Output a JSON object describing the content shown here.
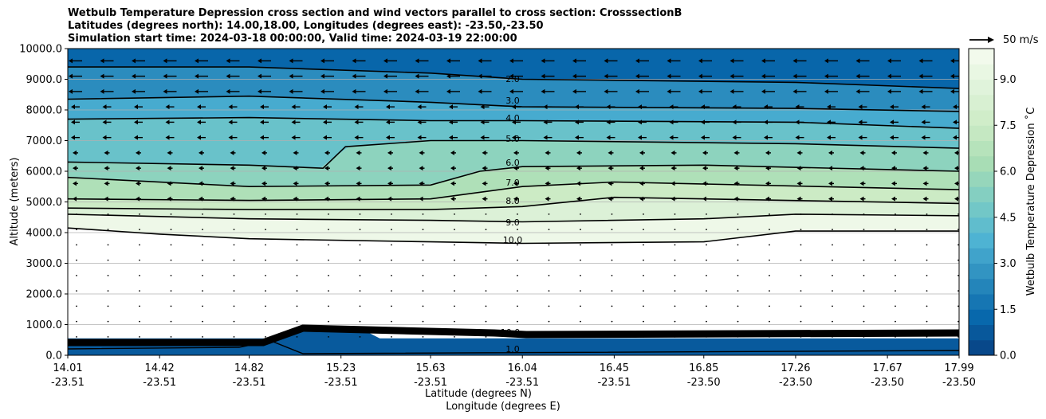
{
  "title_lines": [
    "Wetbulb Temperature Depression cross section and wind vectors parallel to cross section: CrosssectionB",
    "Latitudes (degrees north): 14.00,18.00, Longitudes (degrees east): -23.50,-23.50",
    "Simulation start time: 2024-03-18 00:00:00, Valid time: 2024-03-19 22:00:00"
  ],
  "reference_vector_label": "50 m/s",
  "chart_data": {
    "type": "heatmap",
    "title": "Wetbulb Temperature Depression cross section and wind vectors parallel to cross section: CrosssectionB",
    "ylabel": "Altitude (meters)",
    "xlabel_lines": [
      "Latitude (degrees N)",
      "Longitude (degrees E)"
    ],
    "ylim": [
      0,
      10000
    ],
    "y_ticks": [
      "0.0",
      "1000.0",
      "2000.0",
      "3000.0",
      "4000.0",
      "5000.0",
      "6000.0",
      "7000.0",
      "8000.0",
      "9000.0",
      "10000.0"
    ],
    "x_ticks": [
      {
        "lat": "14.01",
        "lon": "-23.51"
      },
      {
        "lat": "14.42",
        "lon": "-23.51"
      },
      {
        "lat": "14.82",
        "lon": "-23.51"
      },
      {
        "lat": "15.23",
        "lon": "-23.51"
      },
      {
        "lat": "15.63",
        "lon": "-23.51"
      },
      {
        "lat": "16.04",
        "lon": "-23.51"
      },
      {
        "lat": "16.45",
        "lon": "-23.51"
      },
      {
        "lat": "16.85",
        "lon": "-23.50"
      },
      {
        "lat": "17.26",
        "lon": "-23.50"
      },
      {
        "lat": "17.67",
        "lon": "-23.50"
      },
      {
        "lat": "17.99",
        "lon": "-23.50"
      }
    ],
    "grid": "horizontal",
    "colorbar": {
      "label": "Wetbulb Temperature Depression ˚C",
      "range": [
        0,
        10
      ],
      "ticks": [
        "0.0",
        "1.5",
        "3.0",
        "4.5",
        "6.0",
        "7.5",
        "9.0"
      ],
      "colors": [
        "#084081",
        "#0868ac",
        "#2b8cbe",
        "#4eb3d3",
        "#7bccc4",
        "#a8ddb5",
        "#ccebc5",
        "#e0f3db",
        "#f7fcf0"
      ]
    },
    "contour_labels": [
      "2.0",
      "3.0",
      "4.0",
      "5.0",
      "6.0",
      "7.0",
      "8.0",
      "9.0",
      "10.0",
      "1.0",
      "10.0"
    ],
    "wind_vectors": "parallel to cross section, pointing toward lower latitude aloft",
    "contours": [
      {
        "level": 2.0,
        "lat": [
          14.01,
          14.82,
          15.63,
          16.04,
          17.26,
          17.99
        ],
        "alt": [
          9400,
          9400,
          9200,
          9000,
          8900,
          8700
        ]
      },
      {
        "level": 3.0,
        "lat": [
          14.01,
          14.82,
          15.63,
          16.04,
          17.26,
          17.99
        ],
        "alt": [
          8350,
          8450,
          8250,
          8100,
          8050,
          7950
        ]
      },
      {
        "level": 4.0,
        "lat": [
          14.01,
          14.82,
          15.63,
          16.04,
          17.26,
          17.99
        ],
        "alt": [
          7700,
          7750,
          7650,
          7650,
          7600,
          7400
        ]
      },
      {
        "level": 5.0,
        "lat": [
          14.01,
          14.82,
          15.15,
          15.25,
          15.63,
          16.04,
          17.26,
          17.99
        ],
        "alt": [
          6300,
          6200,
          6100,
          6800,
          7000,
          7000,
          6900,
          6750
        ]
      },
      {
        "level": 6.0,
        "lat": [
          14.01,
          14.82,
          15.63,
          15.85,
          16.04,
          16.85,
          17.99
        ],
        "alt": [
          5800,
          5500,
          5550,
          6000,
          6150,
          6200,
          6000
        ]
      },
      {
        "level": 7.0,
        "lat": [
          14.01,
          14.82,
          15.63,
          16.04,
          16.45,
          17.99
        ],
        "alt": [
          5100,
          5050,
          5100,
          5500,
          5650,
          5400
        ]
      },
      {
        "level": 8.0,
        "lat": [
          14.01,
          14.82,
          15.63,
          16.04,
          16.45,
          17.99
        ],
        "alt": [
          4800,
          4750,
          4750,
          4850,
          5150,
          4950
        ]
      },
      {
        "level": 9.0,
        "lat": [
          14.01,
          14.82,
          15.63,
          16.04,
          16.85,
          17.26,
          17.99
        ],
        "alt": [
          4600,
          4450,
          4400,
          4350,
          4450,
          4600,
          4550
        ]
      },
      {
        "level": 10.0,
        "lat": [
          14.01,
          14.42,
          14.82,
          15.63,
          16.04,
          16.85,
          17.26,
          17.99
        ],
        "alt": [
          4150,
          3950,
          3800,
          3700,
          3650,
          3700,
          4050,
          4050
        ]
      }
    ]
  }
}
